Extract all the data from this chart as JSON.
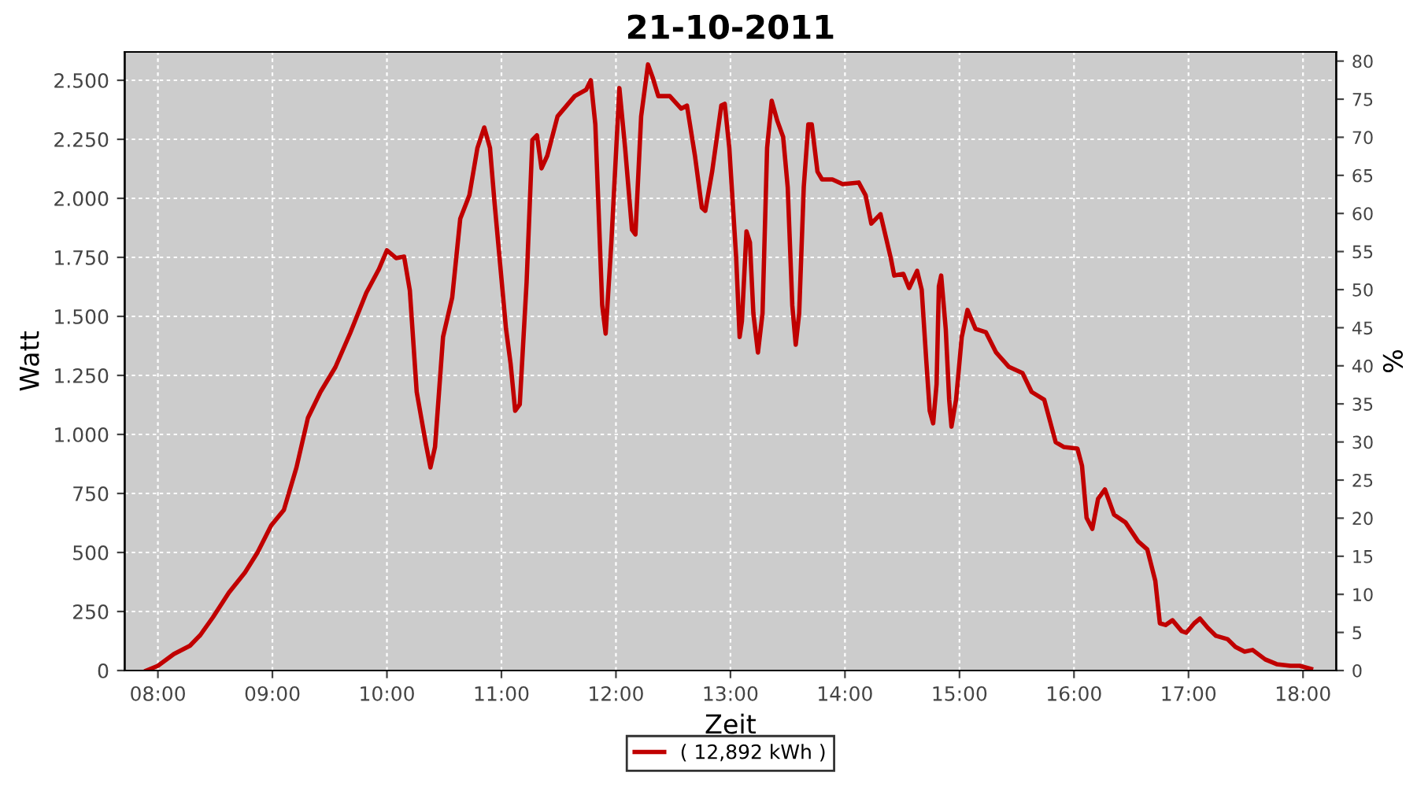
{
  "chart_data": {
    "type": "line",
    "title": "21-10-2011",
    "xlabel": "Zeit",
    "ylabel": "Watt",
    "y2label": "%",
    "xlim": [
      7.71,
      18.29
    ],
    "xticks": [
      {
        "value": 8,
        "label": "08:00"
      },
      {
        "value": 9,
        "label": "09:00"
      },
      {
        "value": 10,
        "label": "10:00"
      },
      {
        "value": 11,
        "label": "11:00"
      },
      {
        "value": 12,
        "label": "12:00"
      },
      {
        "value": 13,
        "label": "13:00"
      },
      {
        "value": 14,
        "label": "14:00"
      },
      {
        "value": 15,
        "label": "15:00"
      },
      {
        "value": 16,
        "label": "16:00"
      },
      {
        "value": 17,
        "label": "17:00"
      },
      {
        "value": 18,
        "label": "18:00"
      }
    ],
    "ylim": [
      0,
      2620
    ],
    "yticks": [
      0,
      250,
      500,
      750,
      {
        "value": 1000,
        "label": "1.000"
      },
      {
        "value": 1250,
        "label": "1.250"
      },
      {
        "value": 1500,
        "label": "1.500"
      },
      {
        "value": 1750,
        "label": "1.750"
      },
      {
        "value": 2000,
        "label": "2.000"
      },
      {
        "value": 2250,
        "label": "2.250"
      },
      {
        "value": 2500,
        "label": "2.500"
      }
    ],
    "y2lim": [
      0,
      81.2
    ],
    "y2ticks": [
      0,
      5,
      10,
      15,
      20,
      25,
      30,
      35,
      40,
      45,
      50,
      55,
      60,
      65,
      70,
      75,
      80
    ],
    "grid": true,
    "legend": "bottom",
    "marker": "none",
    "line_style": "solid",
    "series": [
      {
        "name": "( 12,892 kWh )",
        "color": "#c00000",
        "x": [
          7.9,
          8.0,
          8.14,
          8.28,
          8.37,
          8.48,
          8.62,
          8.76,
          8.87,
          8.99,
          9.1,
          9.21,
          9.31,
          9.42,
          9.55,
          9.68,
          9.82,
          9.93,
          10.0,
          10.08,
          10.15,
          10.2,
          10.26,
          10.34,
          10.38,
          10.42,
          10.49,
          10.57,
          10.64,
          10.72,
          10.79,
          10.85,
          10.9,
          10.94,
          10.99,
          11.04,
          11.08,
          11.12,
          11.16,
          11.22,
          11.27,
          11.31,
          11.35,
          11.4,
          11.49,
          11.64,
          11.74,
          11.78,
          11.82,
          11.88,
          11.91,
          11.96,
          12.03,
          12.08,
          12.14,
          12.17,
          12.22,
          12.28,
          12.32,
          12.37,
          12.47,
          12.57,
          12.62,
          12.69,
          12.75,
          12.78,
          12.84,
          12.92,
          12.95,
          12.99,
          13.05,
          13.08,
          13.1,
          13.14,
          13.17,
          13.2,
          13.24,
          13.28,
          13.32,
          13.36,
          13.41,
          13.46,
          13.5,
          13.54,
          13.57,
          13.6,
          13.64,
          13.68,
          13.71,
          13.76,
          13.8,
          13.89,
          13.98,
          14.12,
          14.18,
          14.23,
          14.27,
          14.31,
          14.4,
          14.43,
          14.51,
          14.56,
          14.63,
          14.67,
          14.71,
          14.74,
          14.77,
          14.8,
          14.82,
          14.84,
          14.88,
          14.91,
          14.93,
          14.97,
          15.02,
          15.07,
          15.14,
          15.23,
          15.32,
          15.43,
          15.55,
          15.63,
          15.74,
          15.84,
          15.91,
          16.03,
          16.07,
          16.11,
          16.16,
          16.21,
          16.27,
          16.35,
          16.45,
          16.56,
          16.64,
          16.71,
          16.75,
          16.8,
          16.86,
          16.94,
          16.98,
          17.05,
          17.1,
          17.17,
          17.24,
          17.34,
          17.41,
          17.49,
          17.56,
          17.67,
          17.77,
          17.89,
          17.97,
          18.07
        ],
        "values": [
          0,
          20,
          70,
          105,
          150,
          225,
          330,
          415,
          500,
          615,
          680,
          860,
          1070,
          1180,
          1285,
          1430,
          1600,
          1700,
          1780,
          1747,
          1753,
          1610,
          1180,
          960,
          860,
          947,
          1413,
          1580,
          1913,
          2013,
          2213,
          2300,
          2213,
          1980,
          1713,
          1447,
          1300,
          1100,
          1127,
          1647,
          2247,
          2267,
          2127,
          2180,
          2347,
          2433,
          2460,
          2500,
          2313,
          1547,
          1427,
          1813,
          2467,
          2213,
          1867,
          1847,
          2347,
          2567,
          2513,
          2433,
          2433,
          2380,
          2393,
          2180,
          1960,
          1947,
          2113,
          2393,
          2400,
          2213,
          1747,
          1413,
          1480,
          1860,
          1813,
          1513,
          1347,
          1513,
          2213,
          2413,
          2327,
          2260,
          2047,
          1547,
          1380,
          1513,
          2047,
          2313,
          2313,
          2113,
          2080,
          2080,
          2060,
          2067,
          2013,
          1893,
          1913,
          1933,
          1747,
          1673,
          1680,
          1620,
          1693,
          1613,
          1313,
          1100,
          1047,
          1213,
          1627,
          1673,
          1447,
          1147,
          1033,
          1147,
          1413,
          1527,
          1447,
          1433,
          1347,
          1287,
          1260,
          1180,
          1147,
          967,
          947,
          940,
          867,
          647,
          600,
          727,
          767,
          660,
          627,
          547,
          513,
          380,
          200,
          193,
          213,
          167,
          160,
          200,
          220,
          180,
          147,
          133,
          100,
          80,
          87,
          47,
          27,
          20,
          20,
          7
        ]
      }
    ]
  }
}
